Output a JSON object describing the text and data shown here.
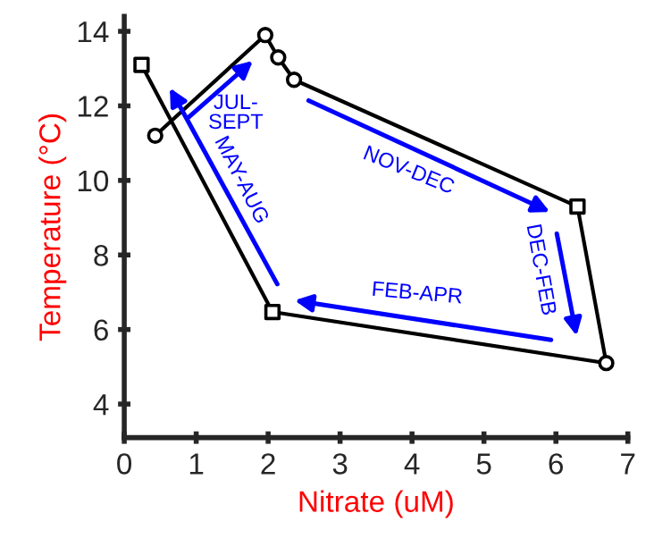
{
  "chart_data": {
    "type": "line",
    "xlabel": "Nitrate (uM)",
    "ylabel": "Temperature (°C)",
    "xlim": [
      0,
      7
    ],
    "ylim": [
      3.1,
      14.4
    ],
    "xticks": [
      0,
      1,
      2,
      3,
      4,
      5,
      6,
      7
    ],
    "yticks": [
      4,
      6,
      8,
      10,
      12,
      14
    ],
    "grid": false,
    "legend": false,
    "series": [
      {
        "color": "#000000",
        "marker": "none",
        "x": [
          0.24,
          2.06,
          6.7,
          6.3,
          2.36,
          2.14,
          1.96,
          0.43
        ],
        "values": [
          13.1,
          6.47,
          5.1,
          9.3,
          12.7,
          13.3,
          13.9,
          11.2
        ]
      },
      {
        "type": "scatter",
        "color": "#000000",
        "marker": "square",
        "x": [
          0.24,
          2.06,
          6.3
        ],
        "values": [
          13.1,
          6.47,
          9.3
        ]
      },
      {
        "type": "scatter",
        "color": "#000000",
        "marker": "circle",
        "x": [
          0.43,
          1.96,
          2.14,
          2.36,
          6.7
        ],
        "values": [
          11.2,
          13.9,
          13.3,
          12.7,
          5.1
        ]
      }
    ],
    "annotations": [
      "JUL-\nSEPT",
      "MAY-AUG",
      "NOV-DEC",
      "DEC-FEB",
      "FEB-APR"
    ]
  }
}
